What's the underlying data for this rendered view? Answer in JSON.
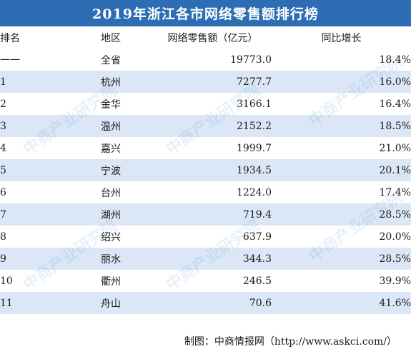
{
  "title": "2019年浙江各市网络零售额排行榜",
  "headers": [
    "排名",
    "地区",
    "网络零售额（亿元）",
    "同比增长"
  ],
  "rows": [
    [
      "一一",
      "全省",
      "19773.0",
      "18.4%"
    ],
    [
      "1",
      "杭州",
      "7277.7",
      "16.0%"
    ],
    [
      "2",
      "金华",
      "3166.1",
      "16.4%"
    ],
    [
      "3",
      "温州",
      "2152.2",
      "18.5%"
    ],
    [
      "4",
      "嘉兴",
      "1999.7",
      "21.0%"
    ],
    [
      "5",
      "宁波",
      "1934.5",
      "20.1%"
    ],
    [
      "6",
      "台州",
      "1224.0",
      "17.4%"
    ],
    [
      "7",
      "湖州",
      "719.4",
      "28.5%"
    ],
    [
      "8",
      "绍兴",
      "637.9",
      "20.0%"
    ],
    [
      "9",
      "丽水",
      "344.3",
      "28.5%"
    ],
    [
      "10",
      "衢州",
      "246.5",
      "39.9%"
    ],
    [
      "11",
      "舟山",
      "70.6",
      "41.6%"
    ]
  ],
  "source": "制图：中商情报网（http://www.askci.com/）",
  "watermark": "中商产业研究院",
  "colors": {
    "title_bg": "#2c6db3",
    "stripe": "#dbe7f6"
  }
}
